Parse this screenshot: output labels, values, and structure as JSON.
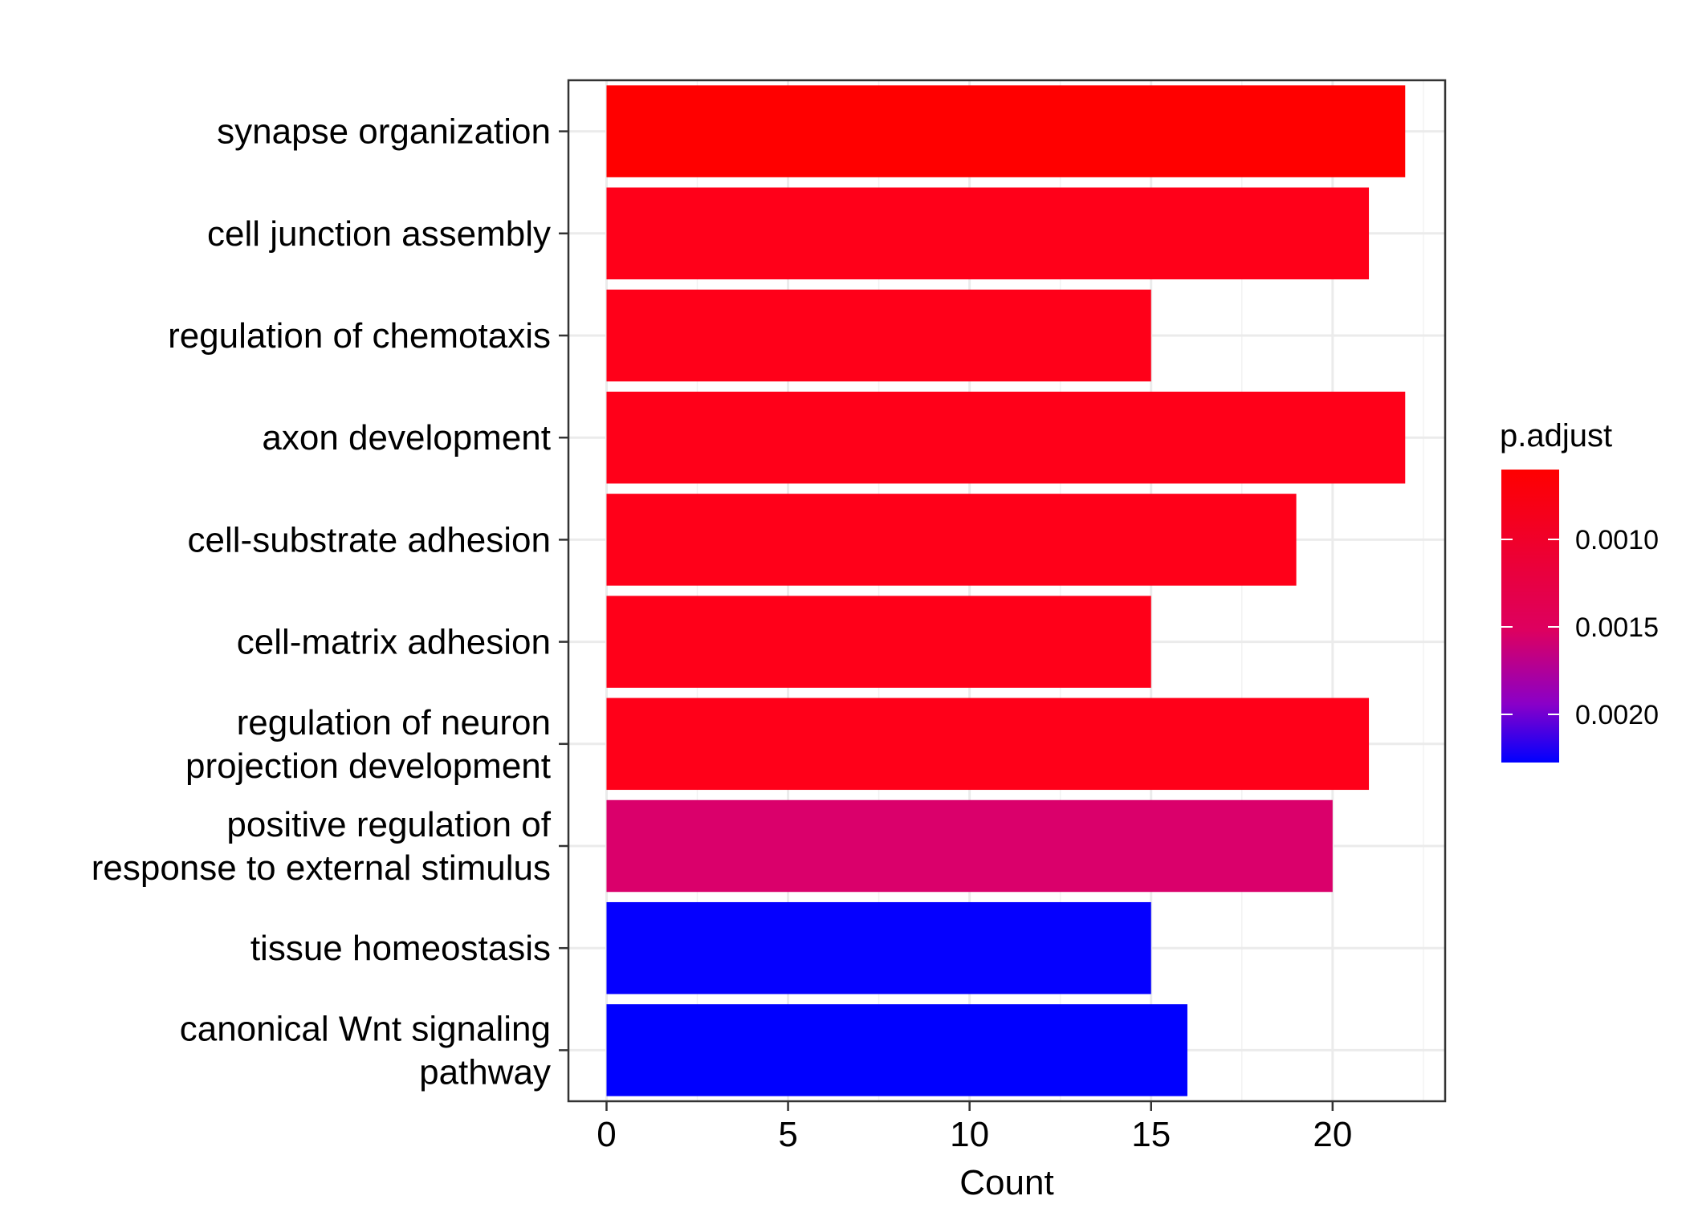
{
  "chart_data": {
    "type": "bar",
    "orientation": "horizontal",
    "categories": [
      [
        "synapse organization"
      ],
      [
        "cell junction assembly"
      ],
      [
        "regulation of chemotaxis"
      ],
      [
        "axon development"
      ],
      [
        "cell-substrate adhesion"
      ],
      [
        "cell-matrix adhesion"
      ],
      [
        "regulation of neuron",
        "projection development"
      ],
      [
        "positive regulation of",
        "response to external stimulus"
      ],
      [
        "tissue homeostasis"
      ],
      [
        "canonical Wnt signaling",
        "pathway"
      ]
    ],
    "values": [
      22,
      21,
      15,
      22,
      19,
      15,
      21,
      20,
      15,
      16
    ],
    "bar_colors": [
      "#FF0000",
      "#FF0019",
      "#FF0019",
      "#FF0019",
      "#FF0019",
      "#FF0019",
      "#FF0019",
      "#DA006B",
      "#0500FF",
      "#0000FF"
    ],
    "xlabel": "Count",
    "ylabel": "",
    "xlim": [
      -1.05,
      23.1
    ],
    "xticks": [
      0,
      5,
      10,
      15,
      20
    ],
    "grid": true,
    "legend": {
      "title": "p.adjust",
      "position": "right",
      "type": "colorbar",
      "color_top": "#FF0000",
      "color_bottom": "#0000FF",
      "ticks": [
        "0.0010",
        "0.0015",
        "0.0020"
      ]
    }
  }
}
